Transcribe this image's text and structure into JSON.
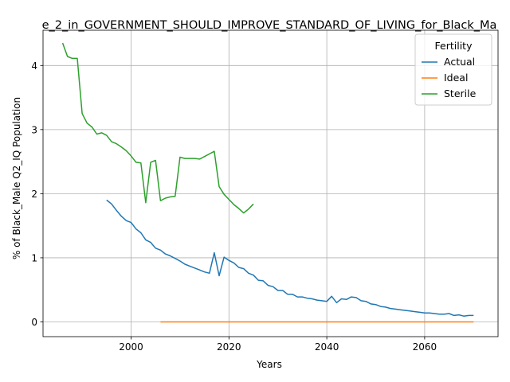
{
  "chart_data": {
    "type": "line",
    "title": "e_2_in_GOVERNMENT_SHOULD_IMPROVE_STANDARD_OF_LIVING_for_Black_Ma",
    "xlabel": "Years",
    "ylabel": "% of Black_Male Q2_IQ Population",
    "xlim": [
      1982,
      2075
    ],
    "ylim": [
      -0.23,
      4.55
    ],
    "x_ticks": [
      2000,
      2020,
      2040,
      2060
    ],
    "y_ticks": [
      0,
      1,
      2,
      3,
      4
    ],
    "grid": true,
    "legend": {
      "title": "Fertility",
      "placement": "top-right"
    },
    "series": [
      {
        "name": "Actual",
        "color": "#1f77b4",
        "points": [
          [
            1995,
            1.9
          ],
          [
            1996,
            1.84
          ],
          [
            1997,
            1.74
          ],
          [
            1998,
            1.65
          ],
          [
            1999,
            1.58
          ],
          [
            2000,
            1.55
          ],
          [
            2001,
            1.45
          ],
          [
            2002,
            1.39
          ],
          [
            2003,
            1.28
          ],
          [
            2004,
            1.24
          ],
          [
            2005,
            1.15
          ],
          [
            2006,
            1.12
          ],
          [
            2007,
            1.06
          ],
          [
            2008,
            1.03
          ],
          [
            2009,
            0.99
          ],
          [
            2010,
            0.95
          ],
          [
            2011,
            0.9
          ],
          [
            2012,
            0.87
          ],
          [
            2013,
            0.84
          ],
          [
            2014,
            0.81
          ],
          [
            2015,
            0.78
          ],
          [
            2016,
            0.76
          ],
          [
            2017,
            1.08
          ],
          [
            2018,
            0.72
          ],
          [
            2019,
            1.01
          ],
          [
            2020,
            0.96
          ],
          [
            2021,
            0.92
          ],
          [
            2022,
            0.85
          ],
          [
            2023,
            0.83
          ],
          [
            2024,
            0.76
          ],
          [
            2025,
            0.73
          ],
          [
            2026,
            0.65
          ],
          [
            2027,
            0.64
          ],
          [
            2028,
            0.57
          ],
          [
            2029,
            0.55
          ],
          [
            2030,
            0.49
          ],
          [
            2031,
            0.49
          ],
          [
            2032,
            0.43
          ],
          [
            2033,
            0.43
          ],
          [
            2034,
            0.39
          ],
          [
            2035,
            0.39
          ],
          [
            2036,
            0.37
          ],
          [
            2037,
            0.36
          ],
          [
            2038,
            0.34
          ],
          [
            2039,
            0.33
          ],
          [
            2040,
            0.32
          ],
          [
            2041,
            0.4
          ],
          [
            2042,
            0.3
          ],
          [
            2043,
            0.36
          ],
          [
            2044,
            0.35
          ],
          [
            2045,
            0.39
          ],
          [
            2046,
            0.38
          ],
          [
            2047,
            0.33
          ],
          [
            2048,
            0.32
          ],
          [
            2049,
            0.28
          ],
          [
            2050,
            0.27
          ],
          [
            2051,
            0.24
          ],
          [
            2052,
            0.23
          ],
          [
            2053,
            0.21
          ],
          [
            2054,
            0.2
          ],
          [
            2055,
            0.19
          ],
          [
            2056,
            0.18
          ],
          [
            2057,
            0.17
          ],
          [
            2058,
            0.16
          ],
          [
            2059,
            0.15
          ],
          [
            2060,
            0.14
          ],
          [
            2061,
            0.14
          ],
          [
            2062,
            0.13
          ],
          [
            2063,
            0.12
          ],
          [
            2064,
            0.12
          ],
          [
            2065,
            0.13
          ],
          [
            2066,
            0.1
          ],
          [
            2067,
            0.11
          ],
          [
            2068,
            0.09
          ],
          [
            2069,
            0.1
          ],
          [
            2070,
            0.1
          ]
        ]
      },
      {
        "name": "Ideal",
        "color": "#ff7f0e",
        "points": [
          [
            2006,
            0.0
          ],
          [
            2010,
            0.0
          ],
          [
            2020,
            0.0
          ],
          [
            2030,
            0.0
          ],
          [
            2040,
            0.0
          ],
          [
            2050,
            0.0
          ],
          [
            2060,
            0.0
          ],
          [
            2070,
            0.0
          ]
        ]
      },
      {
        "name": "Sterile",
        "color": "#2ca02c",
        "points": [
          [
            1986,
            4.35
          ],
          [
            1987,
            4.14
          ],
          [
            1988,
            4.11
          ],
          [
            1989,
            4.11
          ],
          [
            1990,
            3.25
          ],
          [
            1991,
            3.1
          ],
          [
            1992,
            3.04
          ],
          [
            1993,
            2.93
          ],
          [
            1994,
            2.95
          ],
          [
            1995,
            2.91
          ],
          [
            1996,
            2.81
          ],
          [
            1997,
            2.78
          ],
          [
            1998,
            2.73
          ],
          [
            1999,
            2.67
          ],
          [
            2000,
            2.59
          ],
          [
            2001,
            2.49
          ],
          [
            2002,
            2.48
          ],
          [
            2003,
            1.86
          ],
          [
            2004,
            2.49
          ],
          [
            2005,
            2.52
          ],
          [
            2006,
            1.89
          ],
          [
            2007,
            1.93
          ],
          [
            2008,
            1.95
          ],
          [
            2009,
            1.96
          ],
          [
            2010,
            2.57
          ],
          [
            2011,
            2.55
          ],
          [
            2012,
            2.55
          ],
          [
            2013,
            2.55
          ],
          [
            2014,
            2.54
          ],
          [
            2015,
            2.58
          ],
          [
            2016,
            2.62
          ],
          [
            2017,
            2.66
          ],
          [
            2018,
            2.11
          ],
          [
            2019,
            1.99
          ],
          [
            2020,
            1.91
          ],
          [
            2021,
            1.83
          ],
          [
            2022,
            1.77
          ],
          [
            2023,
            1.7
          ],
          [
            2024,
            1.76
          ],
          [
            2025,
            1.84
          ]
        ]
      }
    ]
  }
}
